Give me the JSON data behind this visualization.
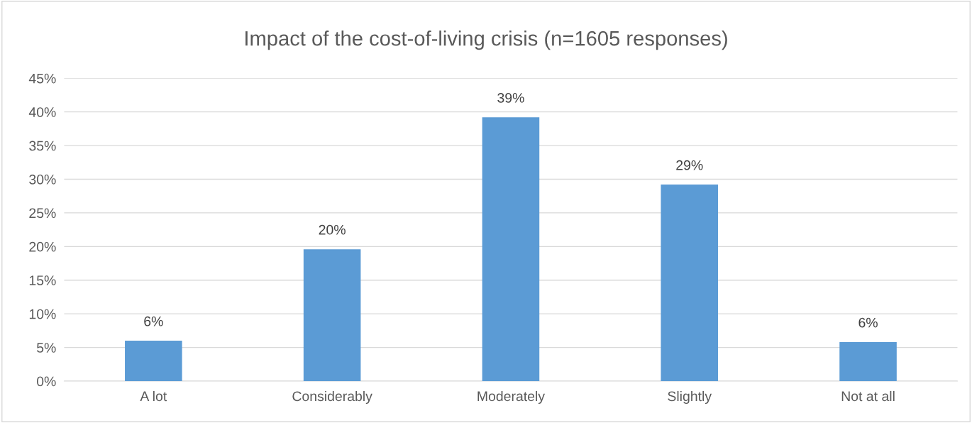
{
  "chart_data": {
    "type": "bar",
    "title": "Impact of the cost-of-living crisis (n=1605 responses)",
    "categories": [
      "A lot",
      "Considerably",
      "Moderately",
      "Slightly",
      "Not at all"
    ],
    "values": [
      6.0,
      19.6,
      39.2,
      29.2,
      5.8
    ],
    "value_labels": [
      "6%",
      "20%",
      "39%",
      "29%",
      "6%"
    ],
    "color": "#5b9bd5",
    "ylim": [
      0,
      45
    ],
    "yticks": [
      {
        "value": 0,
        "label": "0%"
      },
      {
        "value": 5,
        "label": "5%"
      },
      {
        "value": 10,
        "label": "10%"
      },
      {
        "value": 15,
        "label": "15%"
      },
      {
        "value": 20,
        "label": "20%"
      },
      {
        "value": 25,
        "label": "25%"
      },
      {
        "value": 30,
        "label": "30%"
      },
      {
        "value": 35,
        "label": "35%"
      },
      {
        "value": 40,
        "label": "40%"
      },
      {
        "value": 45,
        "label": "45%"
      }
    ],
    "grid": "y"
  }
}
